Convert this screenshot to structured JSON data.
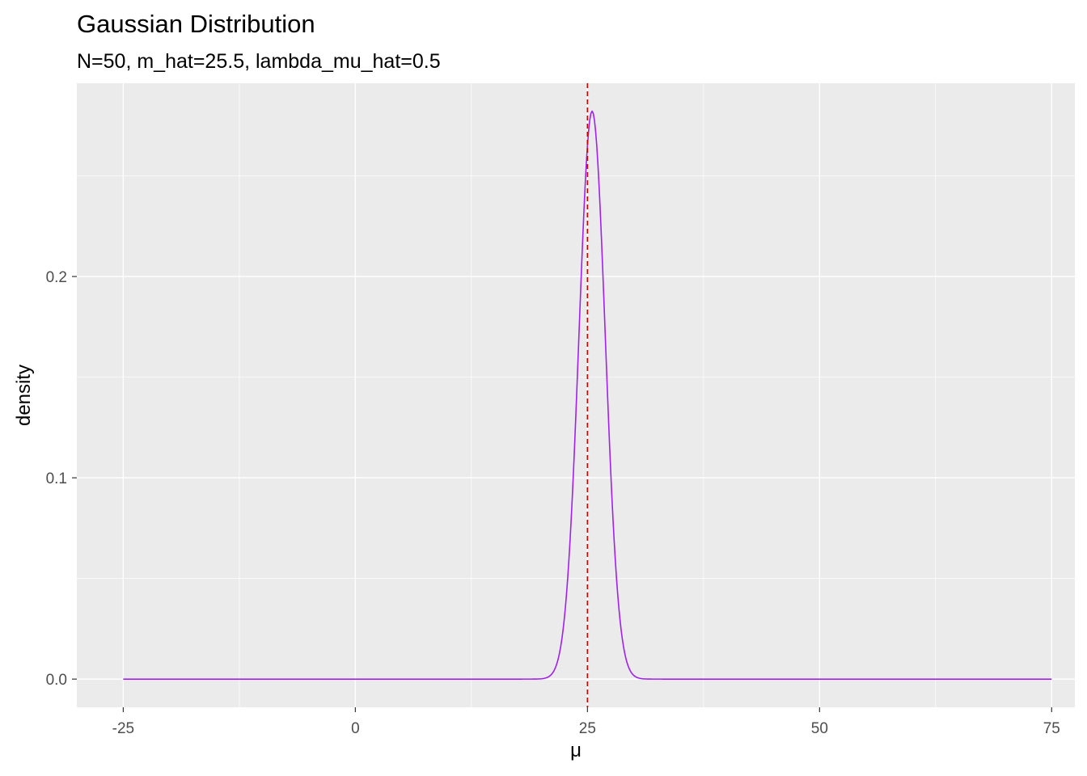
{
  "chart_data": {
    "type": "line",
    "title": "Gaussian Distribution",
    "subtitle": "N=50, m_hat=25.5, lambda_mu_hat=0.5",
    "xlabel": "μ",
    "ylabel": "density",
    "xlim": [
      -30,
      77.5
    ],
    "ylim": [
      -0.014,
      0.296
    ],
    "x_ticks": [
      -25,
      0,
      25,
      50,
      75
    ],
    "x_tick_labels": [
      "-25",
      "0",
      "25",
      "50",
      "75"
    ],
    "y_ticks": [
      0.0,
      0.1,
      0.2
    ],
    "y_tick_labels": [
      "0.0",
      "0.1",
      "0.2"
    ],
    "x_minor_gridlines": [
      -12.5,
      12.5,
      37.5,
      62.5
    ],
    "y_minor_gridlines": [
      0.05,
      0.15,
      0.25
    ],
    "grid": true,
    "background": "#ebebeb",
    "series": [
      {
        "distribution": "normal",
        "mean": 25.5,
        "sd": 1.414,
        "x_range": [
          -25,
          75
        ],
        "color": "#a020f0"
      }
    ],
    "vline": {
      "x": 25,
      "color": "#cd0000",
      "style": "dashed"
    }
  }
}
